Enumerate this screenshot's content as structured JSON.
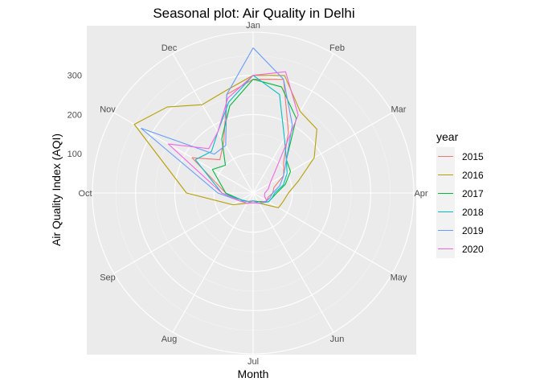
{
  "chart_data": {
    "type": "line",
    "coordinate_system": "polar",
    "title": "Seasonal plot: Air Quality in Delhi",
    "xlabel": "Month",
    "ylabel": "Air Quality Index (AQI)",
    "categories": [
      "Jan",
      "Feb",
      "Mar",
      "Apr",
      "May",
      "Jun",
      "Jul",
      "Aug",
      "Sep",
      "Oct",
      "Nov",
      "Dec"
    ],
    "radial_ticks": [
      100,
      200,
      300
    ],
    "rlim": [
      0,
      410
    ],
    "grid": true,
    "legend": {
      "title": "year",
      "position": "right"
    },
    "series": [
      {
        "name": "2015",
        "color": "#F8766D",
        "points": [
          [
            0.0,
            290
          ],
          [
            0.5,
            300
          ],
          [
            1.0,
            180
          ],
          [
            1.5,
            110
          ],
          [
            2.0,
            90
          ],
          [
            2.5,
            55
          ],
          [
            3.0,
            50
          ],
          [
            3.5,
            40
          ],
          [
            4.0,
            40
          ],
          [
            5.0,
            30
          ],
          [
            6.0,
            25
          ],
          [
            7.0,
            30
          ],
          [
            8.0,
            40
          ],
          [
            9.0,
            70
          ],
          [
            10.0,
            180
          ],
          [
            10.5,
            120
          ],
          [
            11.0,
            150
          ],
          [
            11.5,
            260
          ],
          [
            12.0,
            290
          ]
        ]
      },
      {
        "name": "2016",
        "color": "#B79F00",
        "points": [
          [
            0.0,
            300
          ],
          [
            0.5,
            310
          ],
          [
            1.0,
            240
          ],
          [
            1.5,
            230
          ],
          [
            2.0,
            180
          ],
          [
            2.5,
            120
          ],
          [
            3.0,
            90
          ],
          [
            3.5,
            80
          ],
          [
            4.0,
            75
          ],
          [
            5.0,
            30
          ],
          [
            6.0,
            20
          ],
          [
            7.0,
            30
          ],
          [
            8.0,
            60
          ],
          [
            9.0,
            170
          ],
          [
            10.0,
            350
          ],
          [
            10.5,
            310
          ],
          [
            11.0,
            260
          ],
          [
            11.5,
            270
          ],
          [
            12.0,
            300
          ]
        ]
      },
      {
        "name": "2017",
        "color": "#00BA38",
        "points": [
          [
            0.0,
            290
          ],
          [
            0.5,
            280
          ],
          [
            1.0,
            220
          ],
          [
            1.5,
            120
          ],
          [
            2.0,
            110
          ],
          [
            2.5,
            85
          ],
          [
            3.0,
            60
          ],
          [
            3.5,
            50
          ],
          [
            4.0,
            45
          ],
          [
            5.0,
            25
          ],
          [
            6.0,
            20
          ],
          [
            7.0,
            25
          ],
          [
            8.0,
            35
          ],
          [
            9.0,
            70
          ],
          [
            10.0,
            120
          ],
          [
            10.5,
            100
          ],
          [
            11.0,
            160
          ],
          [
            11.5,
            230
          ],
          [
            12.0,
            290
          ]
        ]
      },
      {
        "name": "2018",
        "color": "#00BFC4",
        "points": [
          [
            0.0,
            300
          ],
          [
            0.5,
            260
          ],
          [
            1.0,
            160
          ],
          [
            1.5,
            120
          ],
          [
            2.0,
            100
          ],
          [
            2.5,
            80
          ],
          [
            3.0,
            55
          ],
          [
            3.5,
            50
          ],
          [
            4.0,
            45
          ],
          [
            5.0,
            30
          ],
          [
            6.0,
            20
          ],
          [
            7.0,
            25
          ],
          [
            8.0,
            35
          ],
          [
            9.0,
            80
          ],
          [
            10.0,
            170
          ],
          [
            10.5,
            150
          ],
          [
            11.0,
            180
          ],
          [
            11.5,
            240
          ],
          [
            12.0,
            300
          ]
        ]
      },
      {
        "name": "2019",
        "color": "#619CFF",
        "points": [
          [
            0.0,
            370
          ],
          [
            0.5,
            300
          ],
          [
            1.0,
            200
          ],
          [
            1.5,
            120
          ],
          [
            2.0,
            90
          ],
          [
            2.5,
            70
          ],
          [
            3.0,
            50
          ],
          [
            3.5,
            45
          ],
          [
            4.0,
            40
          ],
          [
            5.0,
            30
          ],
          [
            6.0,
            20
          ],
          [
            7.0,
            25
          ],
          [
            8.0,
            40
          ],
          [
            9.0,
            90
          ],
          [
            10.0,
            330
          ],
          [
            10.5,
            140
          ],
          [
            11.0,
            140
          ],
          [
            11.5,
            260
          ],
          [
            12.0,
            370
          ]
        ]
      },
      {
        "name": "2020",
        "color": "#F564E3",
        "points": [
          [
            0.0,
            300
          ],
          [
            0.5,
            320
          ],
          [
            1.0,
            230
          ],
          [
            1.5,
            80
          ],
          [
            2.0,
            50
          ],
          [
            2.5,
            40
          ],
          [
            3.0,
            30
          ],
          [
            3.5,
            30
          ],
          [
            4.0,
            40
          ],
          [
            5.0,
            30
          ],
          [
            6.0,
            25
          ],
          [
            7.0,
            30
          ],
          [
            8.0,
            40
          ],
          [
            9.0,
            80
          ],
          [
            10.0,
            250
          ],
          [
            10.5,
            160
          ],
          [
            11.0,
            180
          ],
          [
            11.5,
            250
          ],
          [
            12.0,
            300
          ]
        ]
      }
    ]
  }
}
